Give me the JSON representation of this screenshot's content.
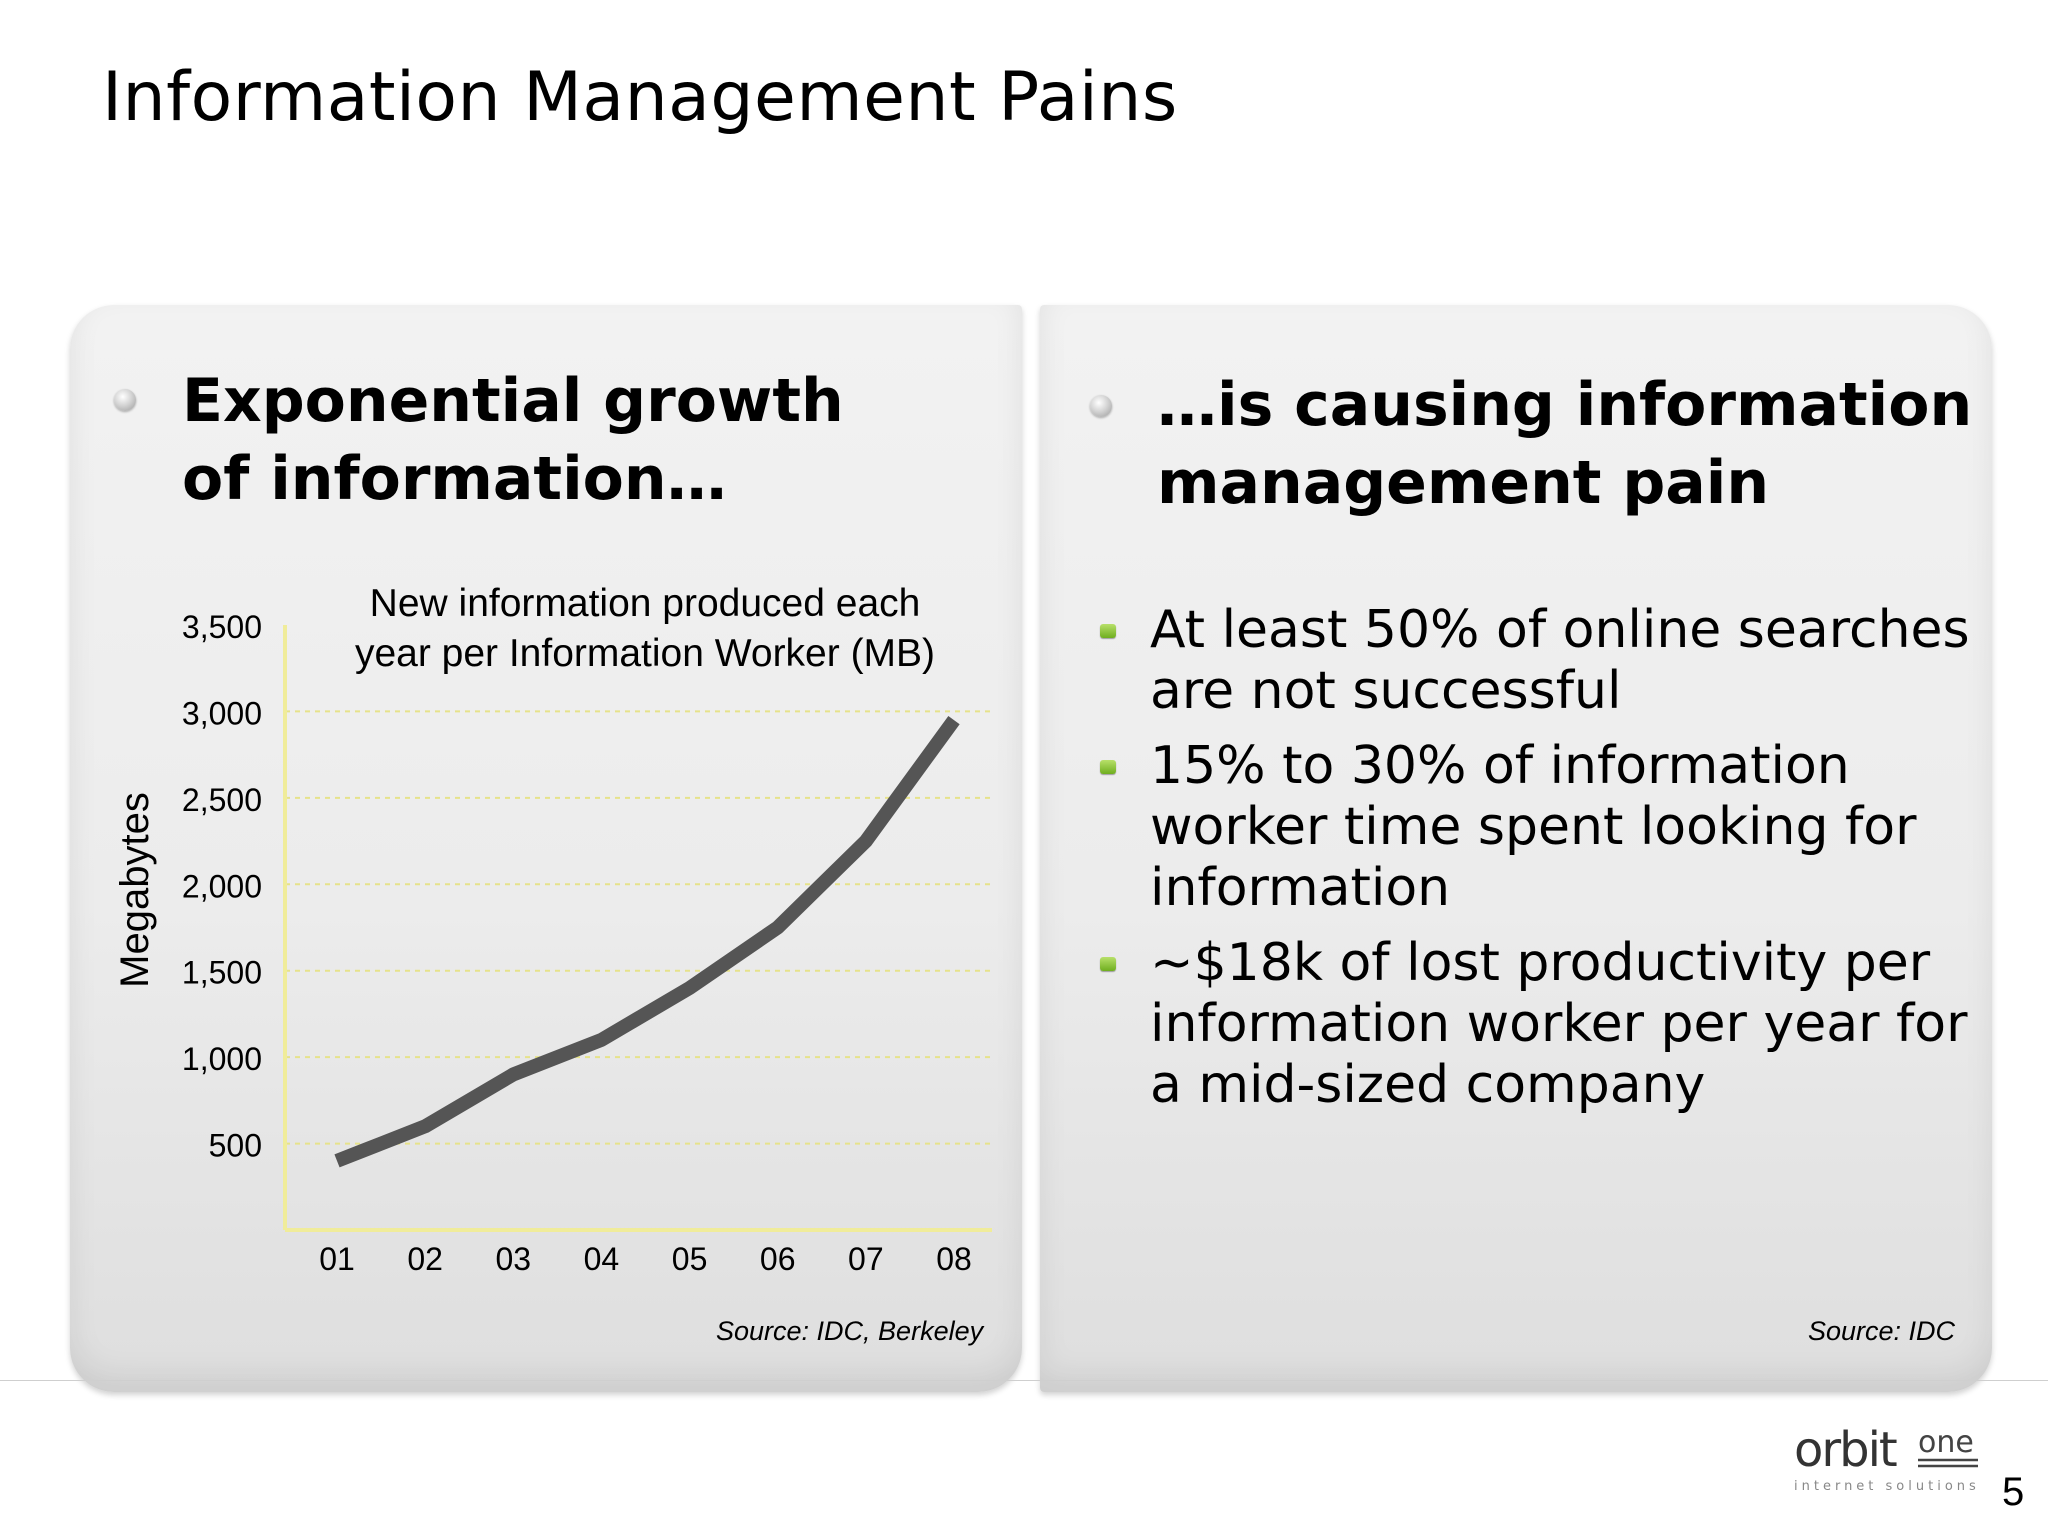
{
  "title": "Information Management Pains",
  "left_panel": {
    "heading_line1": "Exponential growth",
    "heading_line2": "of information…",
    "source": "Source: IDC, Berkeley"
  },
  "right_panel": {
    "heading_line1": "…is causing information",
    "heading_line2": "management pain",
    "bullets": [
      "At least 50% of online searches are not successful",
      "15% to 30% of information worker time spent looking for information",
      "~$18k of lost productivity per information worker per year for a mid-sized company"
    ],
    "source": "Source: IDC"
  },
  "chart_data": {
    "type": "line",
    "title_line1": "New information produced each",
    "title_line2": "year per Information Worker (MB)",
    "ylabel": "Megabytes",
    "xlabel": "",
    "categories": [
      "01",
      "02",
      "03",
      "04",
      "05",
      "06",
      "07",
      "08"
    ],
    "values": [
      400,
      600,
      900,
      1100,
      1400,
      1750,
      2250,
      2950
    ],
    "ylim": [
      0,
      3500
    ],
    "yticks": [
      500,
      1000,
      1500,
      2000,
      2500,
      3000,
      3500
    ],
    "ytick_labels": [
      "500",
      "1,000",
      "1,500",
      "2,000",
      "2,500",
      "3,000",
      "3,500"
    ],
    "grid": true,
    "line_color": "#555555",
    "axis_color": "#f0ec9a",
    "grid_color": "#e6e28a"
  },
  "logo": {
    "word": "orbit",
    "suffix": "one",
    "tagline": "internet solutions"
  },
  "page_number": "5",
  "colors": {
    "bullet_green": "#7cbf2a"
  }
}
